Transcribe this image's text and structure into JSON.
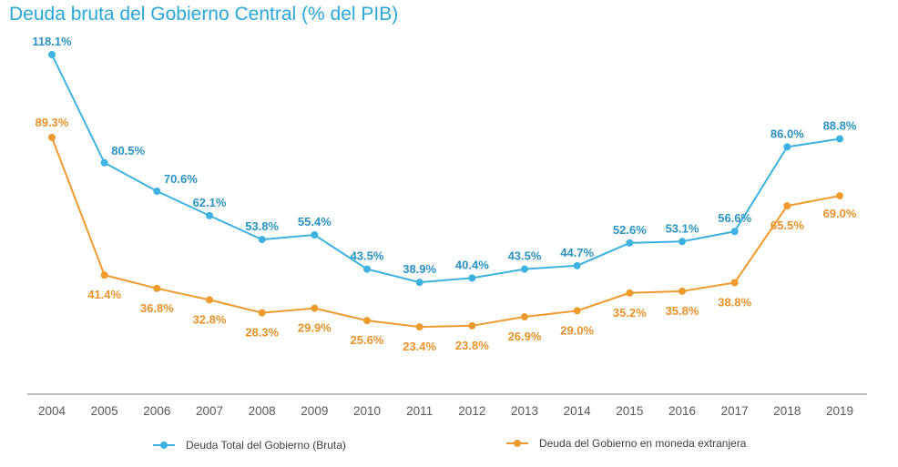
{
  "chart_data": {
    "type": "line",
    "title": "Deuda bruta del Gobierno Central (% del PIB)",
    "xlabel": "",
    "ylabel": "",
    "x": [
      "2004",
      "2005",
      "2006",
      "2007",
      "2008",
      "2009",
      "2010",
      "2011",
      "2012",
      "2013",
      "2014",
      "2015",
      "2016",
      "2017",
      "2018",
      "2019"
    ],
    "ylim": [
      0,
      118.1
    ],
    "grid": false,
    "legend_position": "bottom",
    "series": [
      {
        "name": "Deuda Total del Gobierno (Bruta)",
        "color": "#3db2e0",
        "label_color": "#2a93c4",
        "values": [
          118.1,
          80.5,
          70.6,
          62.1,
          53.8,
          55.4,
          43.5,
          38.9,
          40.4,
          43.5,
          44.7,
          52.6,
          53.1,
          56.6,
          86.0,
          88.8
        ],
        "labels": [
          "118.1%",
          "80.5%",
          "70.6%",
          "62.1%",
          "53.8%",
          "55.4%",
          "43.5%",
          "38.9%",
          "40.4%",
          "43.5%",
          "44.7%",
          "52.6%",
          "53.1%",
          "56.6%",
          "86.0%",
          "88.8%"
        ],
        "label_side": "above"
      },
      {
        "name": "Deuda del Gobierno en moneda extranjera",
        "color": "#ee9a2e",
        "label_color": "#e8922a",
        "values": [
          89.3,
          41.4,
          36.8,
          32.8,
          28.3,
          29.9,
          25.6,
          23.4,
          23.8,
          26.9,
          29.0,
          35.2,
          35.8,
          38.8,
          65.5,
          69.0
        ],
        "labels": [
          "89.3%",
          "41.4%",
          "36.8%",
          "32.8%",
          "28.3%",
          "29.9%",
          "25.6%",
          "23.4%",
          "23.8%",
          "26.9%",
          "29.0%",
          "35.2%",
          "35.8%",
          "38.8%",
          "65.5%",
          "69.0%"
        ],
        "label_side": "below"
      }
    ]
  }
}
